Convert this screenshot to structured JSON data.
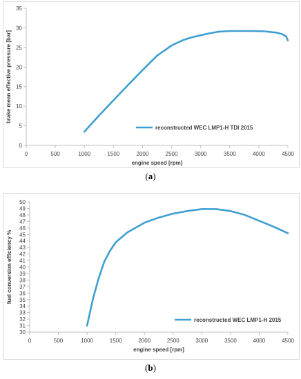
{
  "chart_data": [
    {
      "type": "line",
      "panel": "a",
      "caption_open": "(",
      "caption_letter": "a",
      "caption_close": ")",
      "title": "",
      "xlabel": "engine speed [rpm]",
      "ylabel": "brake mean effective pressure [bar]",
      "xlim": [
        0,
        4500
      ],
      "ylim": [
        0,
        35
      ],
      "xticks": [
        0,
        500,
        1000,
        1500,
        2000,
        2500,
        3000,
        3500,
        4000,
        4500
      ],
      "yticks": [
        0,
        5,
        10,
        15,
        20,
        25,
        30,
        35
      ],
      "grid": false,
      "legend_placement": "center-right",
      "color": "#3d9fd1",
      "series": [
        {
          "name": "reconstructed WEC LMP1-H TDI 2015",
          "x": [
            1000,
            1250,
            1500,
            1750,
            2000,
            2250,
            2500,
            2700,
            2850,
            3000,
            3150,
            3300,
            3500,
            3700,
            3900,
            4100,
            4300,
            4400,
            4470,
            4500
          ],
          "y": [
            3.5,
            7.6,
            11.5,
            15.4,
            19.2,
            22.9,
            25.5,
            26.9,
            27.6,
            28.1,
            28.6,
            29.0,
            29.2,
            29.2,
            29.2,
            29.1,
            28.8,
            28.4,
            27.8,
            26.8
          ]
        }
      ]
    },
    {
      "type": "line",
      "panel": "b",
      "caption_open": "(",
      "caption_letter": "b",
      "caption_close": ")",
      "title": "",
      "xlabel": "engine speed [rpm]",
      "ylabel": "fuel conversion efficiency %",
      "xlim": [
        0,
        4500
      ],
      "ylim": [
        30,
        50
      ],
      "xticks": [
        0,
        500,
        1000,
        1500,
        2000,
        2500,
        3000,
        3500,
        4000,
        4500
      ],
      "yticks": [
        30,
        31,
        32,
        33,
        34,
        35,
        36,
        37,
        38,
        39,
        40,
        41,
        42,
        43,
        44,
        45,
        46,
        47,
        48,
        49,
        50
      ],
      "grid": false,
      "legend_placement": "center-right",
      "color": "#3d9fd1",
      "series": [
        {
          "name": "reconstructed WEC LMP1-H 2015",
          "x": [
            1000,
            1100,
            1200,
            1300,
            1400,
            1500,
            1700,
            2000,
            2250,
            2500,
            2750,
            3000,
            3250,
            3500,
            3750,
            4000,
            4250,
            4500
          ],
          "y": [
            31.0,
            35.0,
            38.2,
            40.8,
            42.5,
            43.8,
            45.3,
            46.8,
            47.6,
            48.2,
            48.6,
            48.9,
            48.9,
            48.6,
            48.0,
            47.1,
            46.2,
            45.2
          ]
        }
      ]
    }
  ]
}
